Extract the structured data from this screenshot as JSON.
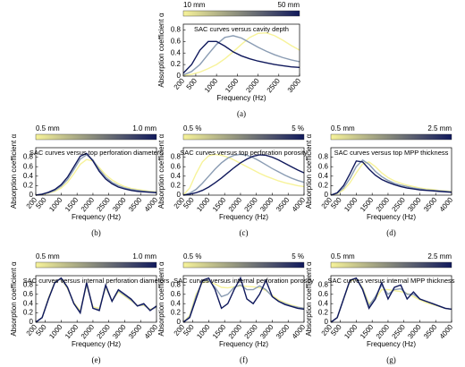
{
  "chart_data": [
    {
      "type": "line",
      "title": "SAC curves versus cavity depth",
      "x_label": "Frequency (Hz)",
      "y_label": "Absorption coefficient α",
      "caption": "(a)",
      "colorbar": {
        "labels": [
          "10 mm",
          "50 mm"
        ],
        "colors": [
          "#f7f39a",
          "#10195c"
        ]
      },
      "x": [
        200,
        400,
        600,
        800,
        1000,
        1200,
        1400,
        1600,
        1800,
        2000,
        2200,
        2400,
        2600,
        2800,
        3000
      ],
      "xlim": [
        200,
        3000
      ],
      "xticks": [
        200,
        500,
        1000,
        1500,
        2000,
        2500,
        3000
      ],
      "ylim": [
        0,
        0.9
      ],
      "yticks": [
        0,
        0.2,
        0.4,
        0.6,
        0.8
      ],
      "series": [
        {
          "color": "#f7f39a",
          "values": [
            0.01,
            0.03,
            0.07,
            0.13,
            0.2,
            0.3,
            0.42,
            0.55,
            0.67,
            0.74,
            0.75,
            0.7,
            0.62,
            0.53,
            0.45
          ]
        },
        {
          "color": "#8a9cb3",
          "values": [
            0.02,
            0.08,
            0.2,
            0.38,
            0.55,
            0.67,
            0.7,
            0.66,
            0.58,
            0.5,
            0.43,
            0.37,
            0.32,
            0.28,
            0.25
          ]
        },
        {
          "color": "#10195c",
          "values": [
            0.05,
            0.2,
            0.45,
            0.6,
            0.6,
            0.52,
            0.42,
            0.35,
            0.3,
            0.26,
            0.23,
            0.2,
            0.18,
            0.16,
            0.15
          ]
        }
      ]
    },
    {
      "type": "line",
      "title": "SAC curves versus top perforation diameters",
      "x_label": "Frequency (Hz)",
      "y_label": "Absorption coefficient α",
      "caption": "(b)",
      "colorbar": {
        "labels": [
          "0.5 mm",
          "1.0 mm"
        ],
        "colors": [
          "#f7f39a",
          "#10195c"
        ]
      },
      "x": [
        200,
        400,
        600,
        800,
        1000,
        1200,
        1400,
        1600,
        1800,
        2000,
        2200,
        2400,
        2600,
        2800,
        3000,
        3200,
        3400,
        3600,
        3800,
        4000
      ],
      "xlim": [
        200,
        4000
      ],
      "xticks": [
        200,
        500,
        1000,
        1500,
        2000,
        2500,
        3000,
        3500,
        4000
      ],
      "ylim": [
        0,
        1
      ],
      "yticks": [
        0,
        0.2,
        0.4,
        0.6,
        0.8
      ],
      "series": [
        {
          "color": "#f7f39a",
          "values": [
            0,
            0.01,
            0.04,
            0.08,
            0.15,
            0.27,
            0.45,
            0.65,
            0.75,
            0.72,
            0.58,
            0.43,
            0.32,
            0.24,
            0.18,
            0.14,
            0.12,
            0.1,
            0.08,
            0.07
          ]
        },
        {
          "color": "#8a9cb3",
          "values": [
            0,
            0.02,
            0.05,
            0.1,
            0.19,
            0.33,
            0.54,
            0.76,
            0.85,
            0.74,
            0.54,
            0.38,
            0.27,
            0.2,
            0.15,
            0.12,
            0.1,
            0.08,
            0.07,
            0.06
          ]
        },
        {
          "color": "#10195c",
          "values": [
            0,
            0.02,
            0.06,
            0.12,
            0.22,
            0.38,
            0.6,
            0.82,
            0.88,
            0.72,
            0.5,
            0.34,
            0.24,
            0.17,
            0.13,
            0.1,
            0.08,
            0.07,
            0.06,
            0.05
          ]
        }
      ]
    },
    {
      "type": "line",
      "title": "SAC curves versus top perforation porosity",
      "x_label": "Frequency (Hz)",
      "y_label": "Absorption coefficient α",
      "caption": "(c)",
      "colorbar": {
        "labels": [
          "0.5 %",
          "5 %"
        ],
        "colors": [
          "#f7f39a",
          "#10195c"
        ]
      },
      "x": [
        200,
        400,
        600,
        800,
        1000,
        1200,
        1400,
        1600,
        1800,
        2000,
        2200,
        2400,
        2600,
        2800,
        3000,
        3200,
        3400,
        3600,
        3800,
        4000
      ],
      "xlim": [
        200,
        4000
      ],
      "xticks": [
        200,
        500,
        1000,
        1500,
        2000,
        2500,
        3000,
        3500,
        4000
      ],
      "ylim": [
        0,
        1
      ],
      "yticks": [
        0,
        0.2,
        0.4,
        0.6,
        0.8
      ],
      "series": [
        {
          "color": "#f7f39a",
          "values": [
            0,
            0.15,
            0.45,
            0.7,
            0.83,
            0.86,
            0.84,
            0.8,
            0.74,
            0.67,
            0.6,
            0.53,
            0.46,
            0.4,
            0.35,
            0.3,
            0.26,
            0.23,
            0.2,
            0.18
          ]
        },
        {
          "color": "#8a9cb3",
          "values": [
            0,
            0.04,
            0.12,
            0.25,
            0.4,
            0.55,
            0.68,
            0.78,
            0.84,
            0.86,
            0.84,
            0.79,
            0.72,
            0.64,
            0.56,
            0.49,
            0.42,
            0.36,
            0.31,
            0.27
          ]
        },
        {
          "color": "#10195c",
          "values": [
            0,
            0.02,
            0.05,
            0.1,
            0.17,
            0.26,
            0.36,
            0.47,
            0.58,
            0.68,
            0.76,
            0.82,
            0.85,
            0.84,
            0.8,
            0.74,
            0.67,
            0.6,
            0.53,
            0.47
          ]
        }
      ]
    },
    {
      "type": "line",
      "title": "SAC curves versus top MPP thickness",
      "x_label": "Frequency (Hz)",
      "y_label": "Absorption coefficient α",
      "caption": "(d)",
      "colorbar": {
        "labels": [
          "0.5 mm",
          "2.5 mm"
        ],
        "colors": [
          "#f7f39a",
          "#10195c"
        ]
      },
      "x": [
        200,
        400,
        600,
        800,
        1000,
        1200,
        1400,
        1600,
        1800,
        2000,
        2200,
        2400,
        2600,
        2800,
        3000,
        3200,
        3400,
        3600,
        3800,
        4000
      ],
      "xlim": [
        200,
        4000
      ],
      "xticks": [
        200,
        500,
        1000,
        1500,
        2000,
        2500,
        3000,
        3500,
        4000
      ],
      "ylim": [
        0,
        1
      ],
      "yticks": [
        0,
        0.2,
        0.4,
        0.6,
        0.8
      ],
      "series": [
        {
          "color": "#f7f39a",
          "values": [
            0,
            0.03,
            0.11,
            0.26,
            0.47,
            0.66,
            0.7,
            0.6,
            0.47,
            0.37,
            0.3,
            0.25,
            0.21,
            0.18,
            0.15,
            0.13,
            0.12,
            0.1,
            0.09,
            0.08
          ]
        },
        {
          "color": "#8a9cb3",
          "values": [
            0,
            0.04,
            0.15,
            0.35,
            0.6,
            0.74,
            0.65,
            0.5,
            0.39,
            0.31,
            0.25,
            0.21,
            0.18,
            0.15,
            0.13,
            0.11,
            0.1,
            0.09,
            0.08,
            0.07
          ]
        },
        {
          "color": "#10195c",
          "values": [
            0,
            0.05,
            0.2,
            0.45,
            0.72,
            0.7,
            0.55,
            0.42,
            0.33,
            0.27,
            0.22,
            0.18,
            0.15,
            0.13,
            0.11,
            0.1,
            0.09,
            0.08,
            0.07,
            0.06
          ]
        }
      ]
    },
    {
      "type": "line",
      "title": "SAC curves versus internal perforation diameters",
      "x_label": "Frequency (Hz)",
      "y_label": "Absorption coefficient α",
      "caption": "(e)",
      "colorbar": {
        "labels": [
          "0.5 mm",
          "1.0 mm"
        ],
        "colors": [
          "#f7f39a",
          "#10195c"
        ]
      },
      "x": [
        200,
        400,
        600,
        800,
        1000,
        1200,
        1400,
        1600,
        1800,
        2000,
        2200,
        2400,
        2600,
        2800,
        3000,
        3200,
        3400,
        3600,
        3800,
        4000
      ],
      "xlim": [
        200,
        4000
      ],
      "xticks": [
        200,
        500,
        1000,
        1500,
        2000,
        2500,
        3000,
        3500,
        4000
      ],
      "ylim": [
        0,
        1
      ],
      "yticks": [
        0,
        0.2,
        0.4,
        0.6,
        0.8
      ],
      "series": [
        {
          "color": "#f7f39a",
          "values": [
            0,
            0.1,
            0.52,
            0.87,
            0.93,
            0.72,
            0.42,
            0.25,
            0.8,
            0.33,
            0.3,
            0.75,
            0.46,
            0.65,
            0.56,
            0.46,
            0.36,
            0.36,
            0.28,
            0.32
          ]
        },
        {
          "color": "#8a9cb3",
          "values": [
            0,
            0.1,
            0.5,
            0.86,
            0.94,
            0.74,
            0.4,
            0.22,
            0.83,
            0.3,
            0.27,
            0.78,
            0.45,
            0.68,
            0.58,
            0.48,
            0.35,
            0.38,
            0.26,
            0.33
          ]
        },
        {
          "color": "#10195c",
          "values": [
            0,
            0.1,
            0.5,
            0.85,
            0.95,
            0.75,
            0.4,
            0.2,
            0.85,
            0.3,
            0.25,
            0.8,
            0.45,
            0.7,
            0.6,
            0.5,
            0.35,
            0.4,
            0.25,
            0.35
          ]
        }
      ]
    },
    {
      "type": "line",
      "title": "SAC curves versus internal perforation porosity",
      "x_label": "Frequency (Hz)",
      "y_label": "Absorption coefficient α",
      "caption": "(f)",
      "colorbar": {
        "labels": [
          "0.5 %",
          "5 %"
        ],
        "colors": [
          "#f7f39a",
          "#10195c"
        ]
      },
      "x": [
        200,
        400,
        600,
        800,
        1000,
        1200,
        1400,
        1600,
        1800,
        2000,
        2200,
        2400,
        2600,
        2800,
        3000,
        3200,
        3400,
        3600,
        3800,
        4000
      ],
      "xlim": [
        200,
        4000
      ],
      "xticks": [
        200,
        500,
        1000,
        1500,
        2000,
        2500,
        3000,
        3500,
        4000
      ],
      "ylim": [
        0,
        1
      ],
      "yticks": [
        0,
        0.2,
        0.4,
        0.6,
        0.8
      ],
      "series": [
        {
          "color": "#f7f39a",
          "values": [
            0,
            0.15,
            0.6,
            0.85,
            0.88,
            0.82,
            0.75,
            0.74,
            0.76,
            0.78,
            0.77,
            0.76,
            0.74,
            0.68,
            0.58,
            0.48,
            0.42,
            0.37,
            0.33,
            0.3
          ]
        },
        {
          "color": "#8a9cb3",
          "values": [
            0,
            0.12,
            0.55,
            0.88,
            0.9,
            0.75,
            0.55,
            0.6,
            0.75,
            0.8,
            0.7,
            0.7,
            0.78,
            0.7,
            0.55,
            0.45,
            0.4,
            0.35,
            0.32,
            0.3
          ]
        },
        {
          "color": "#10195c",
          "values": [
            0,
            0.1,
            0.5,
            0.9,
            0.95,
            0.7,
            0.3,
            0.4,
            0.7,
            0.95,
            0.5,
            0.4,
            0.6,
            0.9,
            0.55,
            0.45,
            0.38,
            0.34,
            0.3,
            0.28
          ]
        }
      ]
    },
    {
      "type": "line",
      "title": "SAC curves versus internal MPP thickness",
      "x_label": "Frequency (Hz)",
      "y_label": "Absorption coefficient α",
      "caption": "(g)",
      "colorbar": {
        "labels": [
          "0.5 mm",
          "2.5 mm"
        ],
        "colors": [
          "#f7f39a",
          "#10195c"
        ]
      },
      "x": [
        200,
        400,
        600,
        800,
        1000,
        1200,
        1400,
        1600,
        1800,
        2000,
        2200,
        2400,
        2600,
        2800,
        3000,
        3200,
        3400,
        3600,
        3800,
        4000
      ],
      "xlim": [
        200,
        4000
      ],
      "xticks": [
        200,
        500,
        1000,
        1500,
        2000,
        2500,
        3000,
        3500,
        4000
      ],
      "ylim": [
        0,
        1
      ],
      "yticks": [
        0,
        0.2,
        0.4,
        0.6,
        0.8
      ],
      "series": [
        {
          "color": "#f7f39a",
          "values": [
            0,
            0.1,
            0.5,
            0.88,
            0.93,
            0.74,
            0.4,
            0.5,
            0.7,
            0.7,
            0.68,
            0.66,
            0.62,
            0.55,
            0.48,
            0.42,
            0.38,
            0.34,
            0.3,
            0.28
          ]
        },
        {
          "color": "#8a9cb3",
          "values": [
            0,
            0.1,
            0.5,
            0.9,
            0.94,
            0.72,
            0.35,
            0.55,
            0.8,
            0.6,
            0.7,
            0.72,
            0.6,
            0.6,
            0.5,
            0.45,
            0.4,
            0.35,
            0.3,
            0.28
          ]
        },
        {
          "color": "#10195c",
          "values": [
            0,
            0.1,
            0.5,
            0.9,
            0.95,
            0.7,
            0.3,
            0.5,
            0.85,
            0.5,
            0.75,
            0.8,
            0.5,
            0.65,
            0.5,
            0.45,
            0.4,
            0.35,
            0.3,
            0.28
          ]
        }
      ]
    }
  ]
}
